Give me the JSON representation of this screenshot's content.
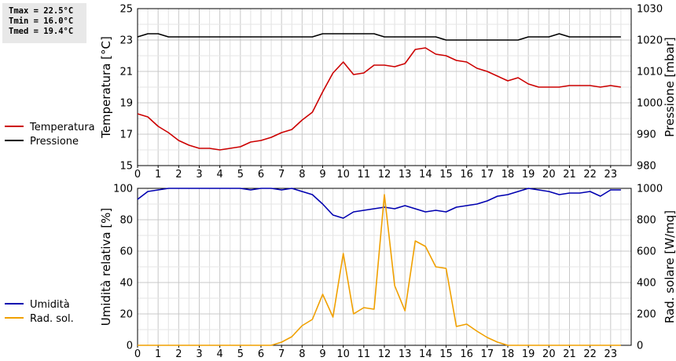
{
  "stats": {
    "tmax": "Tmax = 22.5°C",
    "tmin": "Tmin = 16.0°C",
    "tmed": "Tmed = 19.4°C"
  },
  "chart_data": [
    {
      "type": "line",
      "ylabel": "Temperatura [°C]",
      "y2label": "Pressione [mbar]",
      "xlim": [
        0,
        24
      ],
      "ylim": [
        15,
        25
      ],
      "y2lim": [
        980,
        1030
      ],
      "xticks": [
        "0",
        "1",
        "2",
        "3",
        "4",
        "5",
        "6",
        "7",
        "8",
        "9",
        "10",
        "11",
        "12",
        "13",
        "14",
        "15",
        "16",
        "17",
        "18",
        "19",
        "20",
        "21",
        "22",
        "23"
      ],
      "yticks": [
        "15",
        "17",
        "19",
        "21",
        "23",
        "25"
      ],
      "y2ticks": [
        "980",
        "990",
        "1000",
        "1010",
        "1020",
        "1030"
      ],
      "grid": true,
      "legend_position": "left",
      "series": [
        {
          "name": "Temperatura",
          "axis": "left",
          "color": "#cc0000",
          "x": [
            0,
            0.5,
            1,
            1.5,
            2,
            2.5,
            3,
            3.5,
            4,
            4.5,
            5,
            5.5,
            6,
            6.5,
            7,
            7.5,
            8,
            8.5,
            9,
            9.5,
            10,
            10.5,
            11,
            11.5,
            12,
            12.5,
            13,
            13.5,
            14,
            14.5,
            15,
            15.5,
            16,
            16.5,
            17,
            17.5,
            18,
            18.5,
            19,
            19.5,
            20,
            20.5,
            21,
            21.5,
            22,
            22.5,
            23,
            23.5
          ],
          "y": [
            18.3,
            18.1,
            17.5,
            17.1,
            16.6,
            16.3,
            16.1,
            16.1,
            16.0,
            16.1,
            16.2,
            16.5,
            16.6,
            16.8,
            17.1,
            17.3,
            17.9,
            18.4,
            19.7,
            20.9,
            21.6,
            20.8,
            20.9,
            21.4,
            21.4,
            21.3,
            21.5,
            22.4,
            22.5,
            22.1,
            22.0,
            21.7,
            21.6,
            21.2,
            21.0,
            20.7,
            20.4,
            20.6,
            20.2,
            20.0,
            20.0,
            20.0,
            20.1,
            20.1,
            20.1,
            20.0,
            20.1,
            20.0
          ]
        },
        {
          "name": "Pressione",
          "axis": "right",
          "color": "#000000",
          "x": [
            0,
            0.5,
            1,
            1.5,
            2,
            2.5,
            3,
            3.5,
            4,
            4.5,
            5,
            5.5,
            6,
            6.5,
            7,
            7.5,
            8,
            8.5,
            9,
            9.5,
            10,
            10.5,
            11,
            11.5,
            12,
            12.5,
            13,
            13.5,
            14,
            14.5,
            15,
            15.5,
            16,
            16.5,
            17,
            17.5,
            18,
            18.5,
            19,
            19.5,
            20,
            20.5,
            21,
            21.5,
            22,
            22.5,
            23,
            23.5
          ],
          "y": [
            1021,
            1022,
            1022,
            1021,
            1021,
            1021,
            1021,
            1021,
            1021,
            1021,
            1021,
            1021,
            1021,
            1021,
            1021,
            1021,
            1021,
            1021,
            1022,
            1022,
            1022,
            1022,
            1022,
            1022,
            1021,
            1021,
            1021,
            1021,
            1021,
            1021,
            1020,
            1020,
            1020,
            1020,
            1020,
            1020,
            1020,
            1020,
            1021,
            1021,
            1021,
            1022,
            1021,
            1021,
            1021,
            1021,
            1021,
            1021
          ]
        }
      ]
    },
    {
      "type": "line",
      "ylabel": "Umidità relativa [%]",
      "y2label": "Rad. solare [W/mq]",
      "xlim": [
        0,
        24
      ],
      "ylim": [
        0,
        100
      ],
      "y2lim": [
        0,
        1000
      ],
      "xticks": [
        "0",
        "1",
        "2",
        "3",
        "4",
        "5",
        "6",
        "7",
        "8",
        "9",
        "10",
        "11",
        "12",
        "13",
        "14",
        "15",
        "16",
        "17",
        "18",
        "19",
        "20",
        "21",
        "22",
        "23"
      ],
      "yticks": [
        "0",
        "20",
        "40",
        "60",
        "80",
        "100"
      ],
      "y2ticks": [
        "0",
        "200",
        "400",
        "600",
        "800",
        "1000"
      ],
      "grid": true,
      "legend_position": "left",
      "series": [
        {
          "name": "Umidità",
          "axis": "left",
          "color": "#0000b0",
          "x": [
            0,
            0.5,
            1,
            1.5,
            2,
            2.5,
            3,
            3.5,
            4,
            4.5,
            5,
            5.5,
            6,
            6.5,
            7,
            7.5,
            8,
            8.5,
            9,
            9.5,
            10,
            10.5,
            11,
            11.5,
            12,
            12.5,
            13,
            13.5,
            14,
            14.5,
            15,
            15.5,
            16,
            16.5,
            17,
            17.5,
            18,
            18.5,
            19,
            19.5,
            20,
            20.5,
            21,
            21.5,
            22,
            22.5,
            23,
            23.5
          ],
          "y": [
            93,
            98,
            99,
            100,
            100,
            100,
            100,
            100,
            100,
            100,
            100,
            99,
            100,
            100,
            99,
            100,
            98,
            96,
            90,
            83,
            81,
            85,
            86,
            87,
            88,
            87,
            89,
            87,
            85,
            86,
            85,
            88,
            89,
            90,
            92,
            95,
            96,
            98,
            100,
            99,
            98,
            96,
            97,
            97,
            98,
            95,
            99,
            99
          ]
        },
        {
          "name": "Rad. sol.",
          "axis": "right",
          "color": "#f0a000",
          "x": [
            0,
            0.5,
            1,
            1.5,
            2,
            2.5,
            3,
            3.5,
            4,
            4.5,
            5,
            5.5,
            6,
            6.5,
            7,
            7.5,
            8,
            8.5,
            9,
            9.5,
            10,
            10.5,
            11,
            11.5,
            12,
            12.5,
            13,
            13.5,
            14,
            14.5,
            15,
            15.5,
            16,
            16.5,
            17,
            17.5,
            18,
            18.5,
            19,
            19.5,
            20,
            20.5,
            21,
            21.5,
            22,
            22.5,
            23,
            23.5
          ],
          "y": [
            0,
            0,
            0,
            0,
            0,
            0,
            0,
            0,
            0,
            0,
            0,
            0,
            0,
            0,
            20,
            55,
            125,
            165,
            325,
            180,
            585,
            200,
            240,
            230,
            960,
            380,
            220,
            665,
            630,
            500,
            490,
            120,
            135,
            90,
            50,
            20,
            0,
            0,
            0,
            0,
            0,
            0,
            0,
            0,
            0,
            0,
            0,
            0
          ]
        }
      ]
    }
  ]
}
